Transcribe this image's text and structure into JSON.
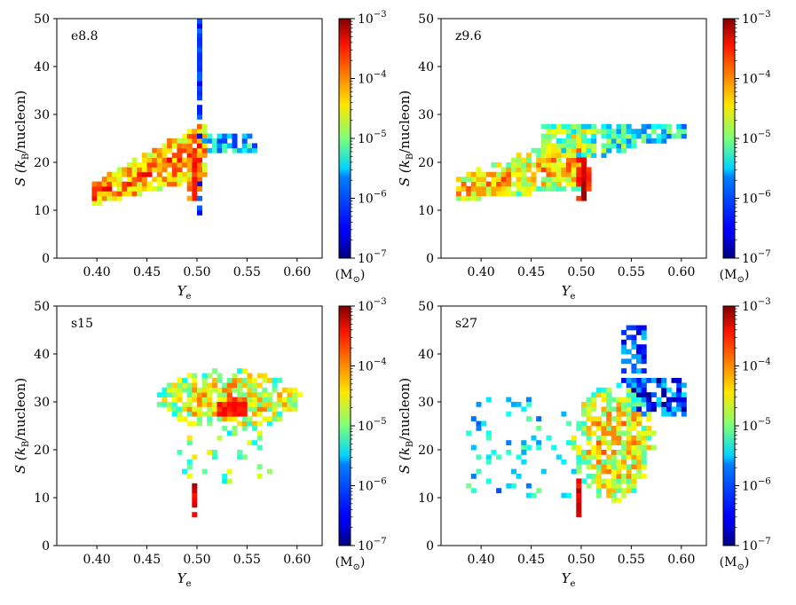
{
  "chart_data": [
    {
      "type": "heatmap",
      "panel_label": "e8.8",
      "xlabel": "Y",
      "xlabel_sub": "e",
      "ylabel_lead": "S (k",
      "ylabel_sub": "B",
      "ylabel_tail": "/nucleon)",
      "xlim": [
        0.36,
        0.625
      ],
      "ylim": [
        0,
        50
      ],
      "xticks": [
        "0.40",
        "0.45",
        "0.50",
        "0.55",
        "0.60"
      ],
      "yticks": [
        "0",
        "10",
        "20",
        "30",
        "40",
        "50"
      ],
      "colorbar": {
        "scale": "log",
        "range": [
          1e-07,
          0.001
        ],
        "ticks": [
          "10",
          "10",
          "10",
          "10",
          "10"
        ],
        "exponents": [
          "−7",
          "−6",
          "−5",
          "−4",
          "−3"
        ],
        "unit": "(M",
        "unit_sub": "⊙",
        "unit_tail": ")"
      },
      "structure": [
        {
          "shape": "band",
          "y_range": [
            11,
            24
          ],
          "ye_range": [
            0.395,
            0.505
          ],
          "level_log10": -4.3
        },
        {
          "shape": "vertical_line",
          "ye": 0.501,
          "y_range": [
            9,
            50
          ],
          "level_log10": -6.3
        },
        {
          "shape": "horizontal_branch",
          "y_range": [
            22,
            25
          ],
          "ye_range": [
            0.5,
            0.555
          ],
          "level_log10": -5.6
        },
        {
          "shape": "core",
          "ye": 0.497,
          "y_range": [
            12,
            22
          ],
          "level_log10": -3.7
        }
      ]
    },
    {
      "type": "heatmap",
      "panel_label": "z9.6",
      "xlabel": "Y",
      "xlabel_sub": "e",
      "ylabel_lead": "S (k",
      "ylabel_sub": "B",
      "ylabel_tail": "/nucleon)",
      "xlim": [
        0.36,
        0.625
      ],
      "ylim": [
        0,
        50
      ],
      "xticks": [
        "0.40",
        "0.45",
        "0.50",
        "0.55",
        "0.60"
      ],
      "yticks": [
        "0",
        "10",
        "20",
        "30",
        "40",
        "50"
      ],
      "colorbar": {
        "scale": "log",
        "range": [
          1e-07,
          0.001
        ],
        "ticks": [
          "10",
          "10",
          "10",
          "10",
          "10"
        ],
        "exponents": [
          "−7",
          "−6",
          "−5",
          "−4",
          "−3"
        ],
        "unit": "(M",
        "unit_sub": "⊙",
        "unit_tail": ")"
      },
      "structure": [
        {
          "shape": "band",
          "y_range": [
            12,
            22
          ],
          "ye_range": [
            0.375,
            0.5
          ],
          "level_log10": -4.6
        },
        {
          "shape": "wedge",
          "y_range": [
            18,
            27.5
          ],
          "ye_range": [
            0.46,
            0.6
          ],
          "level_log10": -5.2
        },
        {
          "shape": "core",
          "ye": 0.498,
          "y_range": [
            12,
            20
          ],
          "level_log10": -3.3
        }
      ]
    },
    {
      "type": "heatmap",
      "panel_label": "s15",
      "xlabel": "Y",
      "xlabel_sub": "e",
      "ylabel_lead": "S (k",
      "ylabel_sub": "B",
      "ylabel_tail": "/nucleon)",
      "xlim": [
        0.36,
        0.625
      ],
      "ylim": [
        0,
        50
      ],
      "xticks": [
        "0.40",
        "0.45",
        "0.50",
        "0.55",
        "0.60"
      ],
      "yticks": [
        "0",
        "10",
        "20",
        "30",
        "40",
        "50"
      ],
      "colorbar": {
        "scale": "log",
        "range": [
          1e-07,
          0.001
        ],
        "ticks": [
          "10",
          "10",
          "10",
          "10",
          "10"
        ],
        "exponents": [
          "−7",
          "−6",
          "−5",
          "−4",
          "−3"
        ],
        "unit": "(M",
        "unit_sub": "⊙",
        "unit_tail": ")"
      },
      "structure": [
        {
          "shape": "cloud",
          "y_range": [
            24,
            36
          ],
          "ye_range": [
            0.46,
            0.6
          ],
          "level_log10": -4.7
        },
        {
          "shape": "core",
          "ye": 0.535,
          "y_range": [
            27,
            30
          ],
          "level_log10": -3.6
        },
        {
          "shape": "scatter",
          "y_range": [
            13,
            24
          ],
          "ye_range": [
            0.48,
            0.57
          ],
          "level_log10": -5.0
        },
        {
          "shape": "vertical_line",
          "ye": 0.497,
          "y_range": [
            6,
            12
          ],
          "level_log10": -3.4
        }
      ]
    },
    {
      "type": "heatmap",
      "panel_label": "s27",
      "xlabel": "Y",
      "xlabel_sub": "e",
      "ylabel_lead": "S (k",
      "ylabel_sub": "B",
      "ylabel_tail": "/nucleon)",
      "xlim": [
        0.36,
        0.625
      ],
      "ylim": [
        0,
        50
      ],
      "xticks": [
        "0.40",
        "0.45",
        "0.50",
        "0.55",
        "0.60"
      ],
      "yticks": [
        "0",
        "10",
        "20",
        "30",
        "40",
        "50"
      ],
      "colorbar": {
        "scale": "log",
        "range": [
          1e-07,
          0.001
        ],
        "ticks": [
          "10",
          "10",
          "10",
          "10",
          "10"
        ],
        "exponents": [
          "−7",
          "−6",
          "−5",
          "−4",
          "−3"
        ],
        "unit": "(M",
        "unit_sub": "⊙",
        "unit_tail": ")"
      },
      "structure": [
        {
          "shape": "cloud",
          "y_range": [
            9,
            33
          ],
          "ye_range": [
            0.49,
            0.57
          ],
          "level_log10": -4.7
        },
        {
          "shape": "spur",
          "y_range": [
            33,
            45
          ],
          "ye_range": [
            0.54,
            0.56
          ],
          "level_log10": -6.2
        },
        {
          "shape": "branch",
          "y_range": [
            27,
            34
          ],
          "ye_range": [
            0.55,
            0.6
          ],
          "level_log10": -6.3
        },
        {
          "shape": "scatter",
          "y_range": [
            10,
            30
          ],
          "ye_range": [
            0.385,
            0.49
          ],
          "level_log10": -5.6
        },
        {
          "shape": "vertical_line",
          "ye": 0.497,
          "y_range": [
            6,
            13
          ],
          "level_log10": -3.4
        }
      ]
    }
  ]
}
